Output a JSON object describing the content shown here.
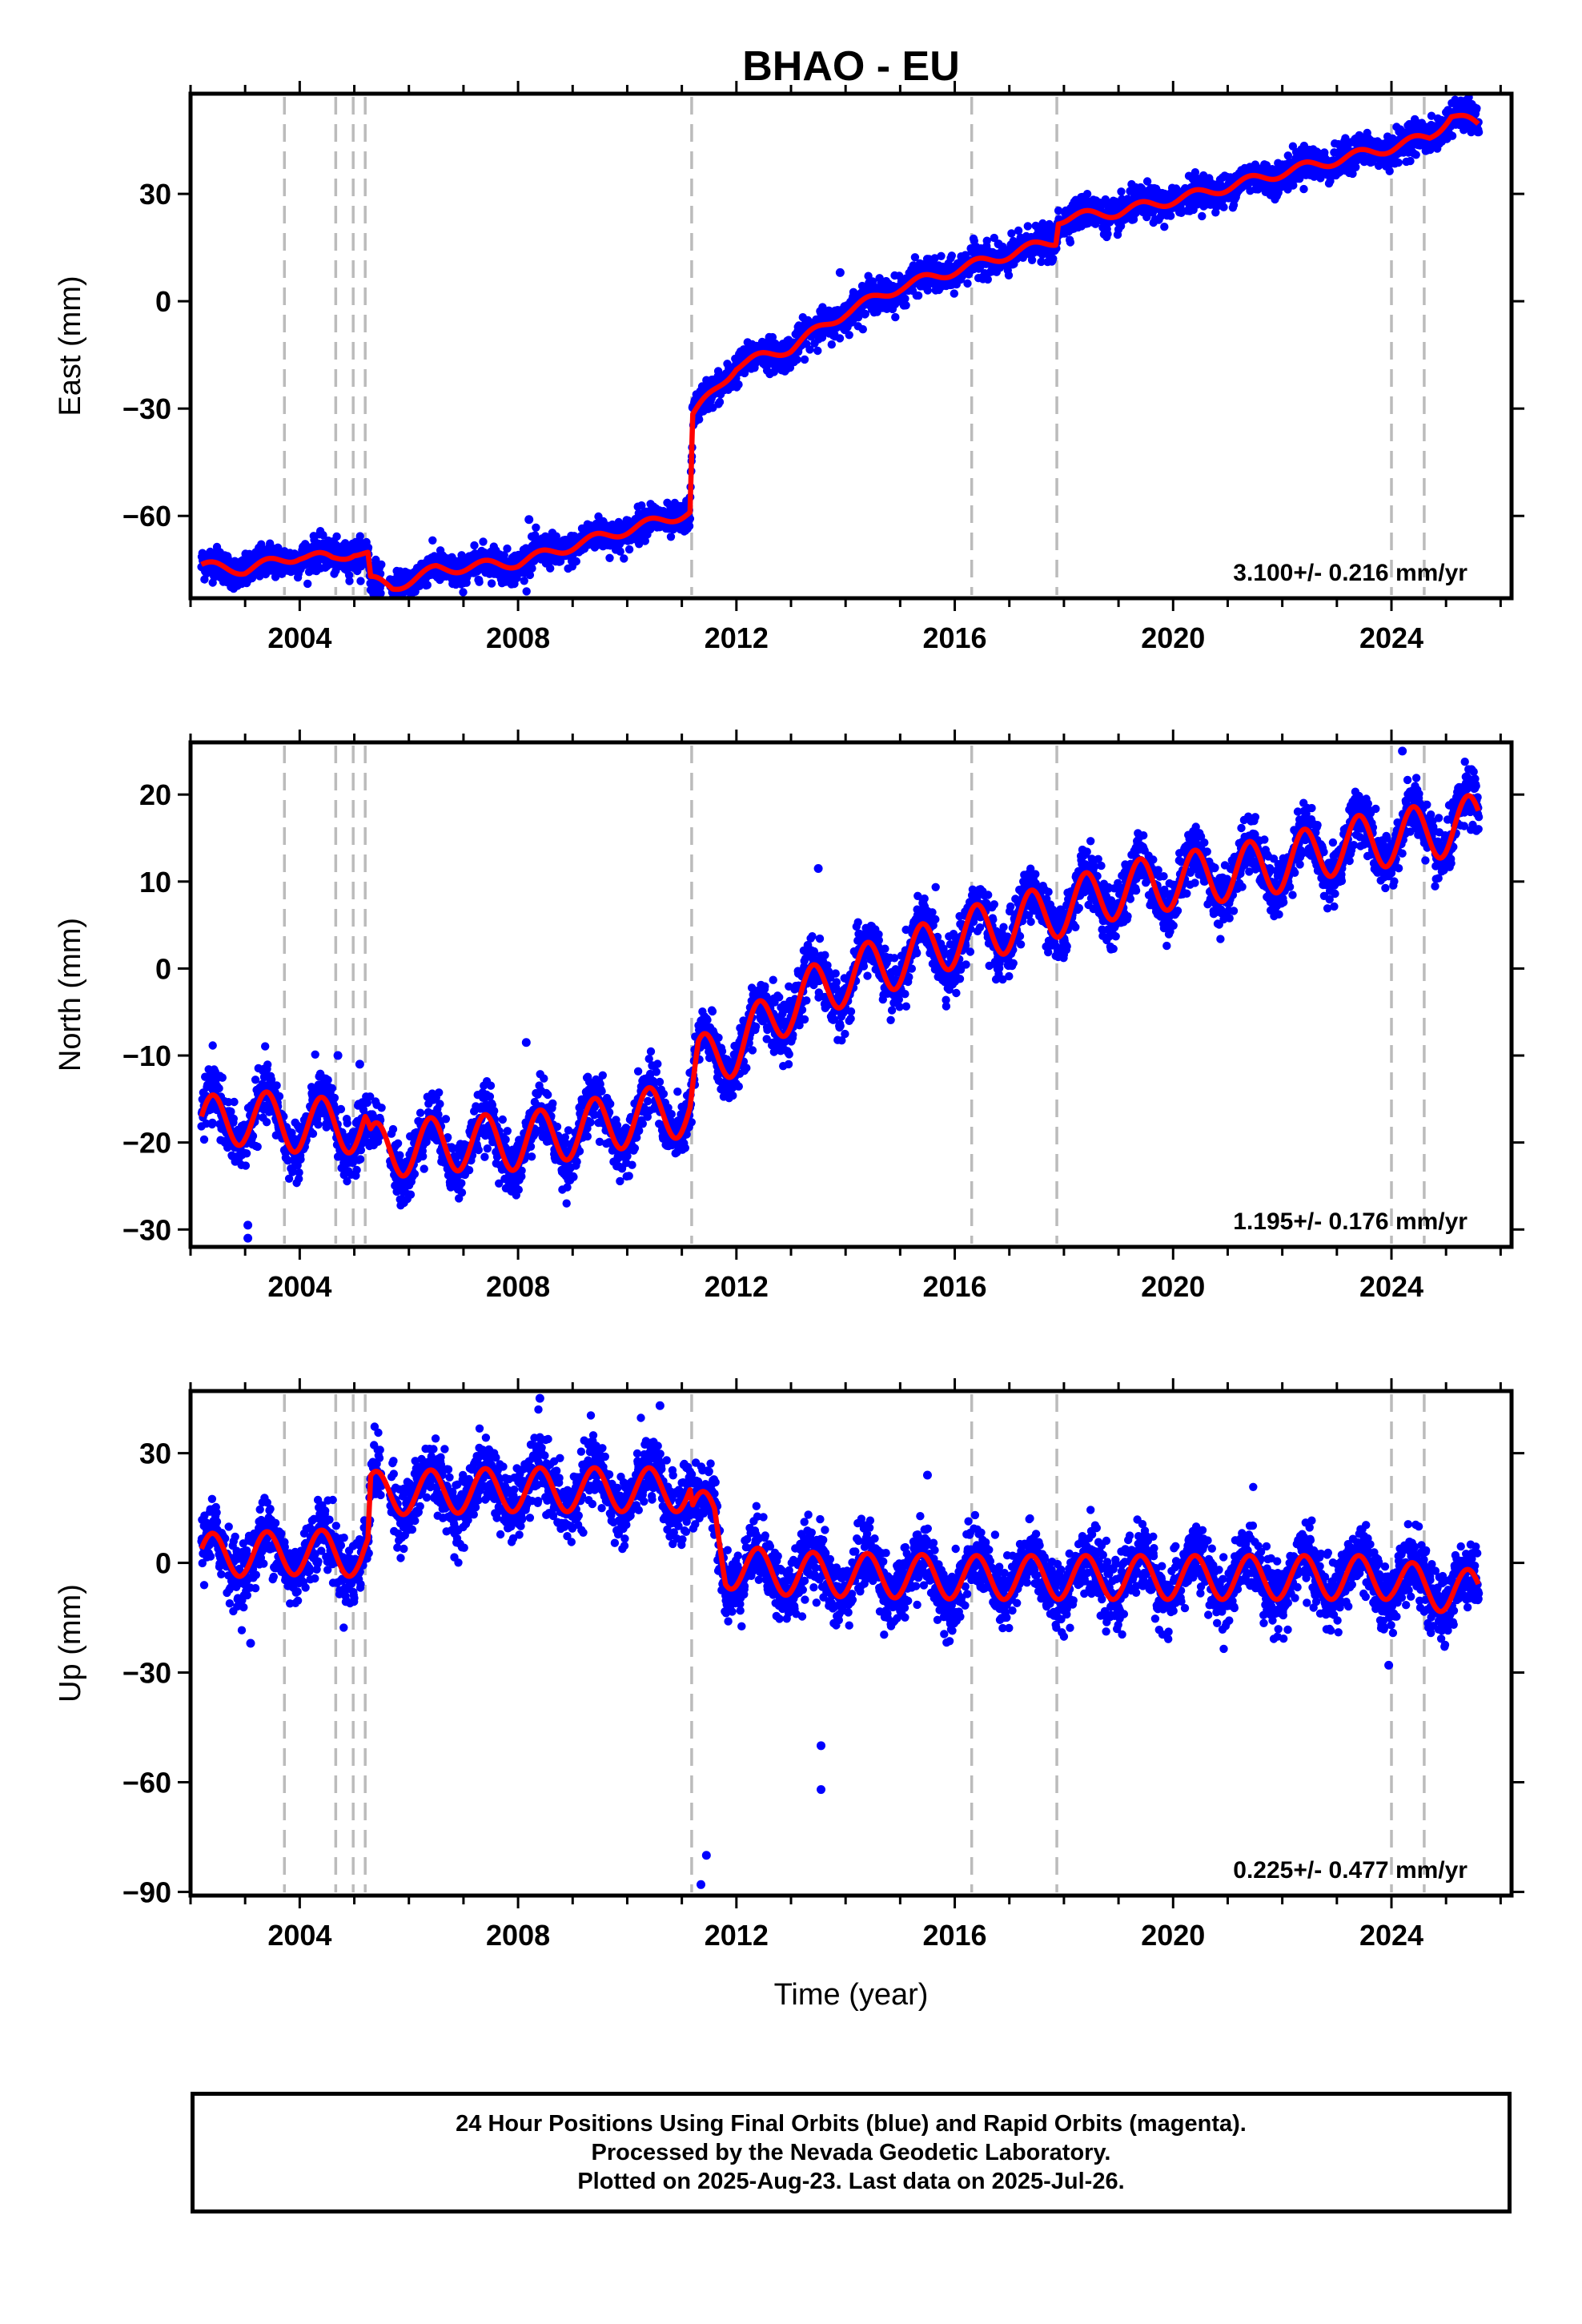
{
  "chart_data": {
    "type": "scatter",
    "title": "BHAO - EU",
    "xlabel": "Time (year)",
    "xlim": [
      2002.0,
      2026.2
    ],
    "xticks": [
      2004,
      2008,
      2012,
      2016,
      2020,
      2024
    ],
    "event_lines": [
      2003.72,
      2004.66,
      2004.98,
      2005.2,
      2011.18,
      2016.31,
      2017.87,
      2024.0,
      2024.6
    ],
    "colors": {
      "points": "#0000ff",
      "model": "#ff0000",
      "events": "#bbbbbb"
    },
    "panels": [
      {
        "name": "east",
        "ylabel": "East (mm)",
        "ylim": [
          -83,
          58
        ],
        "yticks": [
          -60,
          -30,
          0,
          30
        ],
        "ytick_labels": [
          "−60",
          "−30",
          "0",
          "30"
        ],
        "rate": "3.100+/- 0.216 mm/yr",
        "model": [
          [
            2002.2,
            -74
          ],
          [
            2003.0,
            -75
          ],
          [
            2004.0,
            -71
          ],
          [
            2004.6,
            -72
          ],
          [
            2005.0,
            -70
          ],
          [
            2005.25,
            -71
          ],
          [
            2005.3,
            -78
          ],
          [
            2005.7,
            -80
          ],
          [
            2006.5,
            -75
          ],
          [
            2008.0,
            -73
          ],
          [
            2009.5,
            -66
          ],
          [
            2011.15,
            -59
          ],
          [
            2011.2,
            -32
          ],
          [
            2012.0,
            -18
          ],
          [
            2013.0,
            -13
          ],
          [
            2014.0,
            -3
          ],
          [
            2015.0,
            4
          ],
          [
            2016.3,
            10
          ],
          [
            2017.85,
            17
          ],
          [
            2017.9,
            23
          ],
          [
            2019.0,
            25
          ],
          [
            2020.5,
            30
          ],
          [
            2022.0,
            36
          ],
          [
            2024.0,
            43
          ],
          [
            2024.7,
            46
          ],
          [
            2025.1,
            52
          ],
          [
            2025.6,
            49
          ]
        ],
        "scatter": 2.2,
        "seasonal": 1.4,
        "outliers": [
          [
            2013.9,
            8
          ],
          [
            2008.2,
            -61
          ],
          [
            2009.7,
            -63
          ],
          [
            2016.8,
            16
          ]
        ]
      },
      {
        "name": "north",
        "ylabel": "North (mm)",
        "ylim": [
          -32,
          26
        ],
        "yticks": [
          -30,
          -20,
          -10,
          0,
          10,
          20
        ],
        "ytick_labels": [
          "−30",
          "−20",
          "−10",
          "0",
          "10",
          "20"
        ],
        "rate": "1.195+/- 0.176 mm/yr",
        "model": [
          [
            2002.2,
            -18
          ],
          [
            2003.0,
            -17
          ],
          [
            2004.0,
            -18
          ],
          [
            2005.2,
            -18
          ],
          [
            2005.3,
            -21
          ],
          [
            2007.0,
            -20
          ],
          [
            2008.0,
            -20
          ],
          [
            2009.5,
            -18
          ],
          [
            2011.15,
            -16
          ],
          [
            2011.3,
            -11
          ],
          [
            2012.0,
            -9
          ],
          [
            2013.0,
            -4
          ],
          [
            2014.0,
            -1
          ],
          [
            2015.0,
            1
          ],
          [
            2016.3,
            4
          ],
          [
            2017.0,
            5
          ],
          [
            2018.0,
            7
          ],
          [
            2019.0,
            9
          ],
          [
            2020.0,
            10
          ],
          [
            2021.0,
            11
          ],
          [
            2022.0,
            12
          ],
          [
            2023.0,
            14
          ],
          [
            2024.0,
            15
          ],
          [
            2025.0,
            16
          ],
          [
            2025.6,
            17
          ]
        ],
        "scatter": 1.6,
        "seasonal": 3.2,
        "outliers": [
          [
            2003.05,
            -31
          ],
          [
            2003.05,
            -29.5
          ],
          [
            2013.5,
            11.5
          ],
          [
            2008.15,
            -8.5
          ],
          [
            2024.2,
            25
          ],
          [
            2004.7,
            -10
          ],
          [
            2005.1,
            -11
          ]
        ]
      },
      {
        "name": "up",
        "ylabel": "Up (mm)",
        "ylim": [
          -91,
          47
        ],
        "yticks": [
          -90,
          -60,
          -30,
          0,
          30
        ],
        "ytick_labels": [
          "−90",
          "−60",
          "−30",
          "0",
          "30"
        ],
        "rate": "0.225+/- 0.477 mm/yr",
        "model": [
          [
            2002.2,
            2
          ],
          [
            2004.5,
            3
          ],
          [
            2005.1,
            2
          ],
          [
            2005.25,
            3
          ],
          [
            2005.3,
            19
          ],
          [
            2008.0,
            20
          ],
          [
            2011.15,
            20
          ],
          [
            2011.2,
            14
          ],
          [
            2011.6,
            13
          ],
          [
            2011.8,
            -1
          ],
          [
            2013.0,
            -3
          ],
          [
            2016.3,
            -4
          ],
          [
            2017.9,
            -4
          ],
          [
            2020.0,
            -4
          ],
          [
            2024.0,
            -4
          ],
          [
            2024.6,
            -7
          ],
          [
            2025.6,
            -8
          ]
        ],
        "scatter": 4.5,
        "seasonal": 6,
        "outliers": [
          [
            2011.35,
            -88
          ],
          [
            2011.45,
            -80
          ],
          [
            2013.55,
            -50
          ],
          [
            2013.55,
            -62
          ],
          [
            2008.4,
            45
          ],
          [
            2010.6,
            43
          ],
          [
            2023.95,
            -28
          ],
          [
            2015.5,
            24
          ],
          [
            2003.1,
            -22
          ]
        ]
      }
    ]
  },
  "footer": {
    "line1": "24 Hour Positions Using Final Orbits (blue) and Rapid Orbits (magenta).",
    "line2": "Processed by the Nevada Geodetic Laboratory.",
    "line3": "Plotted on 2025-Aug-23. Last data on 2025-Jul-26."
  }
}
